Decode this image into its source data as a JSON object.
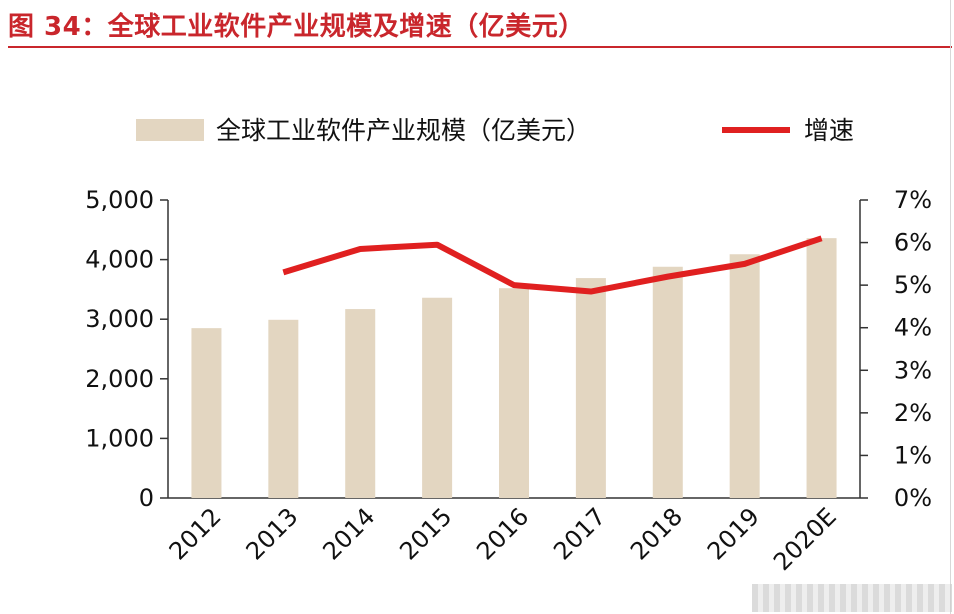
{
  "figure_title": "图 34：全球工业软件产业规模及增速（亿美元）",
  "chart_data": {
    "type": "bar",
    "categories": [
      "2012",
      "2013",
      "2014",
      "2015",
      "2016",
      "2017",
      "2018",
      "2019",
      "2020E"
    ],
    "series": [
      {
        "name": "全球工业软件产业规模（亿美元）",
        "type": "bar",
        "axis": "left",
        "color": "#e3d6c1",
        "values": [
          2850,
          2990,
          3170,
          3360,
          3520,
          3690,
          3880,
          4090,
          4360
        ]
      },
      {
        "name": "增速",
        "type": "line",
        "axis": "right",
        "color": "#e02020",
        "values": [
          null,
          5.3,
          5.85,
          5.95,
          5.0,
          4.85,
          5.2,
          5.5,
          6.1
        ]
      }
    ],
    "left_axis": {
      "ylim": [
        0,
        5000
      ],
      "ticks": [
        0,
        1000,
        2000,
        3000,
        4000,
        5000
      ],
      "tick_labels": [
        "0",
        "1,000",
        "2,000",
        "3,000",
        "4,000",
        "5,000"
      ]
    },
    "right_axis": {
      "ylim": [
        0,
        7
      ],
      "ticks": [
        0,
        1,
        2,
        3,
        4,
        5,
        6,
        7
      ],
      "tick_labels": [
        "0%",
        "1%",
        "2%",
        "3%",
        "4%",
        "5%",
        "6%",
        "7%"
      ]
    },
    "legend_position": "top",
    "grid": false
  }
}
